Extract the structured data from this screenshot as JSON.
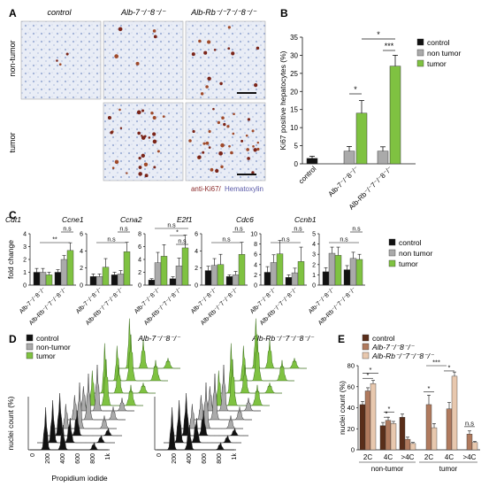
{
  "panel_labels": {
    "a": "A",
    "b": "B",
    "c": "C",
    "d": "D",
    "e": "E"
  },
  "panel_a": {
    "col_headers": [
      "control",
      "Alb-7⁻/⁻8⁻/⁻",
      "Alb-Rb⁻/⁻7⁻/⁻8⁻/⁻"
    ],
    "row_labels": [
      "non-tumor",
      "tumor"
    ],
    "stain_label_1": "anti-Ki67/",
    "stain_label_2": "Hematoxylin",
    "colors": {
      "stain1": "#8b2a2a",
      "stain2": "#5a5aa8"
    }
  },
  "chart_data": [
    {
      "panel": "B",
      "type": "bar",
      "ylabel": "Ki67 positive hepatocytes (%)",
      "ylim": [
        0,
        35
      ],
      "yticks": [
        0,
        5,
        10,
        15,
        20,
        25,
        30,
        35
      ],
      "categories": [
        "control",
        "Alb-7⁻/⁻8⁻/⁻",
        "Alb-Rb⁻/⁻7⁻/⁻8⁻/⁻"
      ],
      "legend": [
        "control",
        "non tumor",
        "tumor"
      ],
      "colors": [
        "#111111",
        "#aaaaaa",
        "#7fc241"
      ],
      "bars": [
        {
          "cat": 0,
          "series": 0,
          "value": 1.5,
          "err": 0.6
        },
        {
          "cat": 1,
          "series": 1,
          "value": 3.5,
          "err": 1.3
        },
        {
          "cat": 1,
          "series": 2,
          "value": 14,
          "err": 3.5
        },
        {
          "cat": 2,
          "series": 1,
          "value": 3.5,
          "err": 1.2
        },
        {
          "cat": 2,
          "series": 2,
          "value": 27,
          "err": 3.0
        }
      ],
      "significance": [
        "*",
        "*",
        "***"
      ]
    },
    {
      "panel": "C",
      "type": "bar",
      "ylabel": "fold change",
      "legend": [
        "control",
        "non tumor",
        "tumor"
      ],
      "colors": [
        "#111111",
        "#aaaaaa",
        "#7fc241"
      ],
      "categories": [
        "Alb-7⁻/⁻8⁻/⁻",
        "Alb-Rb⁻/⁻7⁻/⁻8⁻/⁻"
      ],
      "genes": [
        {
          "name": "Cdt1",
          "ymax": 4,
          "yticks": [
            0,
            1,
            2,
            3,
            4
          ],
          "values": [
            [
              1.0,
              1.0,
              0.8
            ],
            [
              1.0,
              2.0,
              2.7
            ]
          ],
          "errs": [
            [
              0.3,
              0.3,
              0.2
            ],
            [
              0.2,
              0.3,
              0.6
            ]
          ],
          "sig": [
            "**",
            "n.s"
          ]
        },
        {
          "name": "Ccne1",
          "ymax": 6,
          "yticks": [
            0,
            2,
            4,
            6
          ],
          "values": [
            [
              1.0,
              1.0,
              2.1
            ],
            [
              1.2,
              1.3,
              3.9
            ]
          ],
          "errs": [
            [
              0.3,
              0.3,
              1.0
            ],
            [
              0.3,
              0.4,
              1.1
            ]
          ],
          "sig": [
            "n.s",
            "n.s"
          ]
        },
        {
          "name": "Ccna2",
          "ymax": 8,
          "yticks": [
            0,
            2,
            4,
            6,
            8
          ],
          "values": [
            [
              0.8,
              3.5,
              4.5
            ],
            [
              1.0,
              3.0,
              5.8
            ]
          ],
          "errs": [
            [
              0.2,
              1.6,
              1.8
            ],
            [
              0.3,
              1.2,
              2.0
            ]
          ],
          "sig": [
            "*",
            "n.s",
            "n.s"
          ]
        },
        {
          "name": "E2f1",
          "ymax": 6,
          "yticks": [
            0,
            2,
            4,
            6
          ],
          "values": [
            [
              1.7,
              2.3,
              2.4
            ],
            [
              1.0,
              1.2,
              3.6
            ]
          ],
          "errs": [
            [
              0.5,
              0.8,
              1.2
            ],
            [
              0.2,
              0.4,
              1.4
            ]
          ],
          "sig": [
            "n.s",
            "n.s"
          ]
        },
        {
          "name": "Cdc6",
          "ymax": 10,
          "yticks": [
            0,
            2,
            4,
            6,
            8,
            10
          ],
          "values": [
            [
              2.5,
              4.4,
              6.1
            ],
            [
              1.5,
              2.4,
              4.6
            ]
          ],
          "errs": [
            [
              1.1,
              1.5,
              2.6
            ],
            [
              0.5,
              0.9,
              2.8
            ]
          ],
          "sig": [
            "n.s",
            "n.s"
          ]
        },
        {
          "name": "Ccnb1",
          "ymax": 5,
          "yticks": [
            0,
            1,
            2,
            3,
            4,
            5
          ],
          "values": [
            [
              1.3,
              3.1,
              2.9
            ],
            [
              1.5,
              2.6,
              2.5
            ]
          ],
          "errs": [
            [
              0.4,
              0.6,
              0.8
            ],
            [
              0.4,
              0.6,
              0.5
            ]
          ],
          "sig": [
            "n.s",
            "n.s"
          ]
        }
      ]
    },
    {
      "panel": "D",
      "type": "line",
      "ylabel": "nuclei count (%)",
      "xlabel": "Propidium iodide",
      "xticks": [
        "0",
        "200",
        "400",
        "600",
        "800",
        "1k"
      ],
      "legend": [
        "control",
        "non-tumor",
        "tumor"
      ],
      "colors": [
        "#111111",
        "#aaaaaa",
        "#7fc241"
      ],
      "plots": [
        "Alb-7⁻/⁻8⁻/⁻",
        "Alb-Rb⁻/⁻7⁻/⁻8⁻/⁻"
      ],
      "peak_positions": [
        200,
        400,
        800
      ]
    },
    {
      "panel": "E",
      "type": "bar",
      "ylabel": "nuclei count (%)",
      "ylim": [
        0,
        80
      ],
      "yticks": [
        0,
        20,
        40,
        60,
        80
      ],
      "groups": [
        "non-tumor",
        "tumor"
      ],
      "categories": [
        "2C",
        "4C",
        ">4C",
        "2C",
        "4C",
        ">4C"
      ],
      "legend": [
        "control",
        "Alb-7⁻/⁻8⁻/⁻",
        "Alb-Rb⁻/⁻7⁻/⁻8⁻/⁻"
      ],
      "colors": [
        "#5a2e1a",
        "#b07a5e",
        "#e8c8ae"
      ],
      "values": [
        [
          43,
          56,
          63
        ],
        [
          23,
          28,
          25
        ],
        [
          31,
          10,
          6
        ],
        [
          null,
          43,
          21
        ],
        [
          null,
          39,
          70
        ],
        [
          null,
          15,
          7
        ]
      ],
      "errs": [
        [
          3,
          3,
          3
        ],
        [
          3,
          3,
          2
        ],
        [
          3,
          2,
          1
        ],
        [
          null,
          9,
          4
        ],
        [
          null,
          6,
          4
        ],
        [
          null,
          3,
          1
        ]
      ],
      "significance": [
        "*",
        "*",
        "*",
        "*",
        "*",
        "***",
        "*",
        "n.s"
      ]
    }
  ]
}
